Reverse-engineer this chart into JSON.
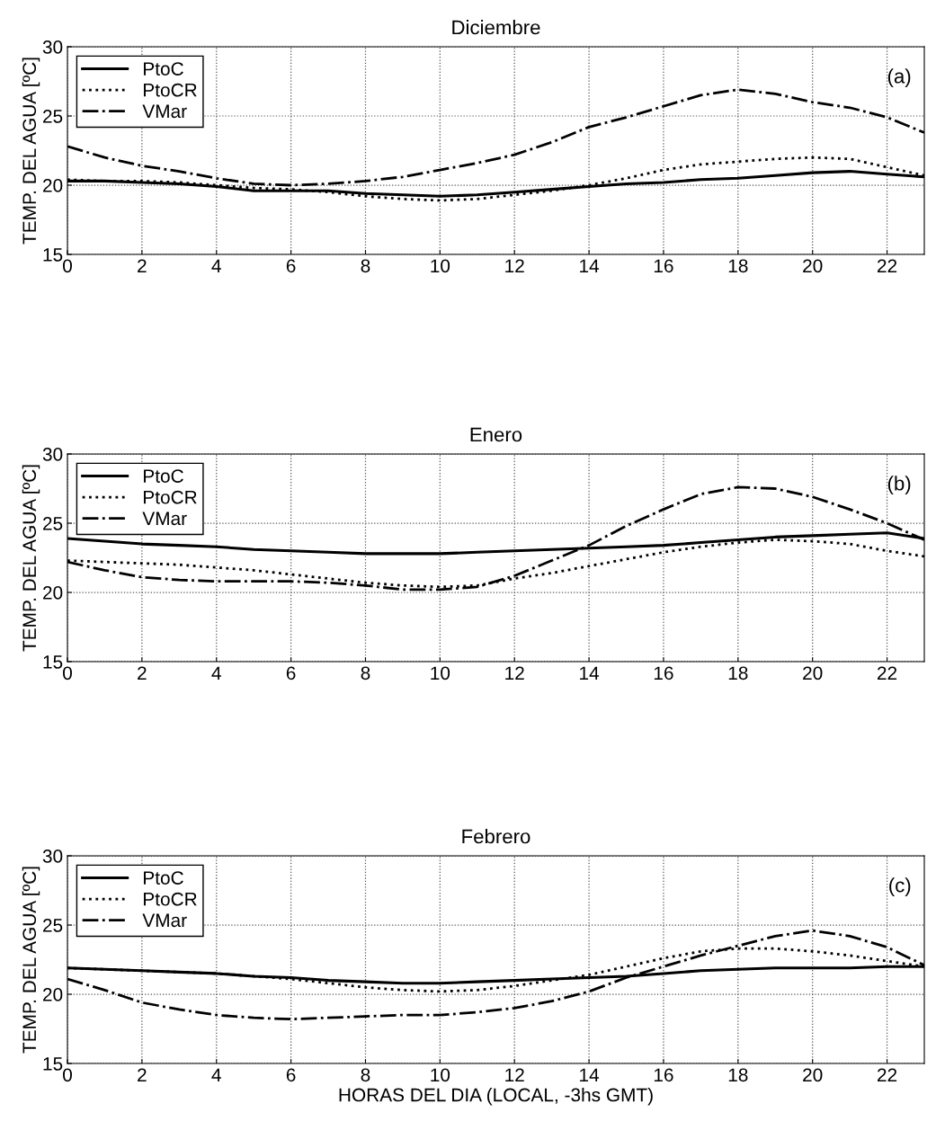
{
  "chart_data": [
    {
      "type": "line",
      "title": "Diciembre",
      "ylabel": "TEMP. DEL AGUA [ºC]",
      "annotations": [
        "(a)"
      ],
      "xlim": [
        0,
        23
      ],
      "xticks": [
        0,
        2,
        4,
        6,
        8,
        10,
        12,
        14,
        16,
        18,
        20,
        22
      ],
      "ylim": [
        15,
        30
      ],
      "yticks": [
        15,
        20,
        25,
        30
      ],
      "grid": true,
      "legend": "top left",
      "x": [
        0,
        1,
        2,
        3,
        4,
        5,
        6,
        7,
        8,
        9,
        10,
        11,
        12,
        13,
        14,
        15,
        16,
        17,
        18,
        19,
        20,
        21,
        22,
        23
      ],
      "series": [
        {
          "name": "PtoC",
          "color": "#000000",
          "line_style": "solid",
          "values": [
            20.3,
            20.3,
            20.2,
            20.1,
            19.9,
            19.6,
            19.6,
            19.6,
            19.4,
            19.3,
            19.2,
            19.3,
            19.5,
            19.7,
            19.9,
            20.1,
            20.2,
            20.4,
            20.5,
            20.7,
            20.9,
            21.0,
            20.8,
            20.6
          ]
        },
        {
          "name": "PtoCR",
          "color": "#000000",
          "line_style": "dotted",
          "values": [
            20.4,
            20.3,
            20.3,
            20.2,
            20.0,
            19.8,
            19.7,
            19.5,
            19.2,
            19.0,
            18.9,
            19.0,
            19.3,
            19.6,
            20.0,
            20.5,
            21.1,
            21.5,
            21.7,
            21.9,
            22.0,
            21.9,
            21.3,
            20.7
          ]
        },
        {
          "name": "VMar",
          "color": "#000000",
          "line_style": "dashdot",
          "values": [
            22.8,
            22.0,
            21.4,
            21.0,
            20.5,
            20.1,
            20.0,
            20.1,
            20.3,
            20.6,
            21.1,
            21.6,
            22.2,
            23.1,
            24.2,
            24.9,
            25.7,
            26.5,
            26.9,
            26.6,
            26.0,
            25.6,
            24.9,
            23.8
          ]
        }
      ]
    },
    {
      "type": "line",
      "title": "Enero",
      "ylabel": "TEMP. DEL AGUA [ºC]",
      "annotations": [
        "(b)"
      ],
      "xlim": [
        0,
        23
      ],
      "xticks": [
        0,
        2,
        4,
        6,
        8,
        10,
        12,
        14,
        16,
        18,
        20,
        22
      ],
      "ylim": [
        15,
        30
      ],
      "yticks": [
        15,
        20,
        25,
        30
      ],
      "grid": true,
      "legend": "top left",
      "x": [
        0,
        1,
        2,
        3,
        4,
        5,
        6,
        7,
        8,
        9,
        10,
        11,
        12,
        13,
        14,
        15,
        16,
        17,
        18,
        19,
        20,
        21,
        22,
        23
      ],
      "series": [
        {
          "name": "PtoC",
          "color": "#000000",
          "line_style": "solid",
          "values": [
            23.9,
            23.7,
            23.5,
            23.4,
            23.3,
            23.1,
            23.0,
            22.9,
            22.8,
            22.8,
            22.8,
            22.9,
            23.0,
            23.1,
            23.2,
            23.3,
            23.4,
            23.6,
            23.8,
            24.0,
            24.1,
            24.2,
            24.3,
            23.9
          ]
        },
        {
          "name": "PtoCR",
          "color": "#000000",
          "line_style": "dotted",
          "values": [
            22.3,
            22.2,
            22.1,
            22.0,
            21.8,
            21.6,
            21.3,
            21.0,
            20.7,
            20.5,
            20.4,
            20.5,
            21.0,
            21.4,
            21.9,
            22.4,
            22.9,
            23.3,
            23.6,
            23.8,
            23.7,
            23.5,
            23.0,
            22.6
          ]
        },
        {
          "name": "VMar",
          "color": "#000000",
          "line_style": "dashdot",
          "values": [
            22.2,
            21.6,
            21.1,
            20.9,
            20.8,
            20.8,
            20.8,
            20.7,
            20.5,
            20.2,
            20.2,
            20.4,
            21.2,
            22.3,
            23.4,
            24.8,
            26.0,
            27.1,
            27.6,
            27.5,
            26.9,
            26.0,
            25.0,
            23.8
          ]
        }
      ]
    },
    {
      "type": "line",
      "title": "Febrero",
      "xlabel": "HORAS DEL DIA (LOCAL, -3hs GMT)",
      "ylabel": "TEMP. DEL AGUA [ºC]",
      "annotations": [
        "(c)"
      ],
      "xlim": [
        0,
        23
      ],
      "xticks": [
        0,
        2,
        4,
        6,
        8,
        10,
        12,
        14,
        16,
        18,
        20,
        22
      ],
      "ylim": [
        15,
        30
      ],
      "yticks": [
        15,
        20,
        25,
        30
      ],
      "grid": true,
      "legend": "top left",
      "x": [
        0,
        1,
        2,
        3,
        4,
        5,
        6,
        7,
        8,
        9,
        10,
        11,
        12,
        13,
        14,
        15,
        16,
        17,
        18,
        19,
        20,
        21,
        22,
        23
      ],
      "series": [
        {
          "name": "PtoC",
          "color": "#000000",
          "line_style": "solid",
          "values": [
            21.9,
            21.8,
            21.7,
            21.6,
            21.5,
            21.3,
            21.2,
            21.0,
            20.9,
            20.8,
            20.8,
            20.9,
            21.0,
            21.1,
            21.2,
            21.3,
            21.5,
            21.7,
            21.8,
            21.9,
            21.9,
            21.9,
            22.0,
            22.0
          ]
        },
        {
          "name": "PtoCR",
          "color": "#000000",
          "line_style": "dotted",
          "values": [
            21.9,
            21.8,
            21.7,
            21.6,
            21.5,
            21.3,
            21.1,
            20.8,
            20.5,
            20.3,
            20.2,
            20.3,
            20.6,
            21.0,
            21.4,
            22.0,
            22.6,
            23.1,
            23.3,
            23.3,
            23.1,
            22.8,
            22.4,
            22.0
          ]
        },
        {
          "name": "VMar",
          "color": "#000000",
          "line_style": "dashdot",
          "values": [
            21.1,
            20.3,
            19.4,
            18.9,
            18.5,
            18.3,
            18.2,
            18.3,
            18.4,
            18.5,
            18.5,
            18.7,
            19.0,
            19.5,
            20.2,
            21.2,
            22.0,
            22.8,
            23.5,
            24.2,
            24.6,
            24.2,
            23.4,
            22.1
          ]
        }
      ]
    }
  ]
}
